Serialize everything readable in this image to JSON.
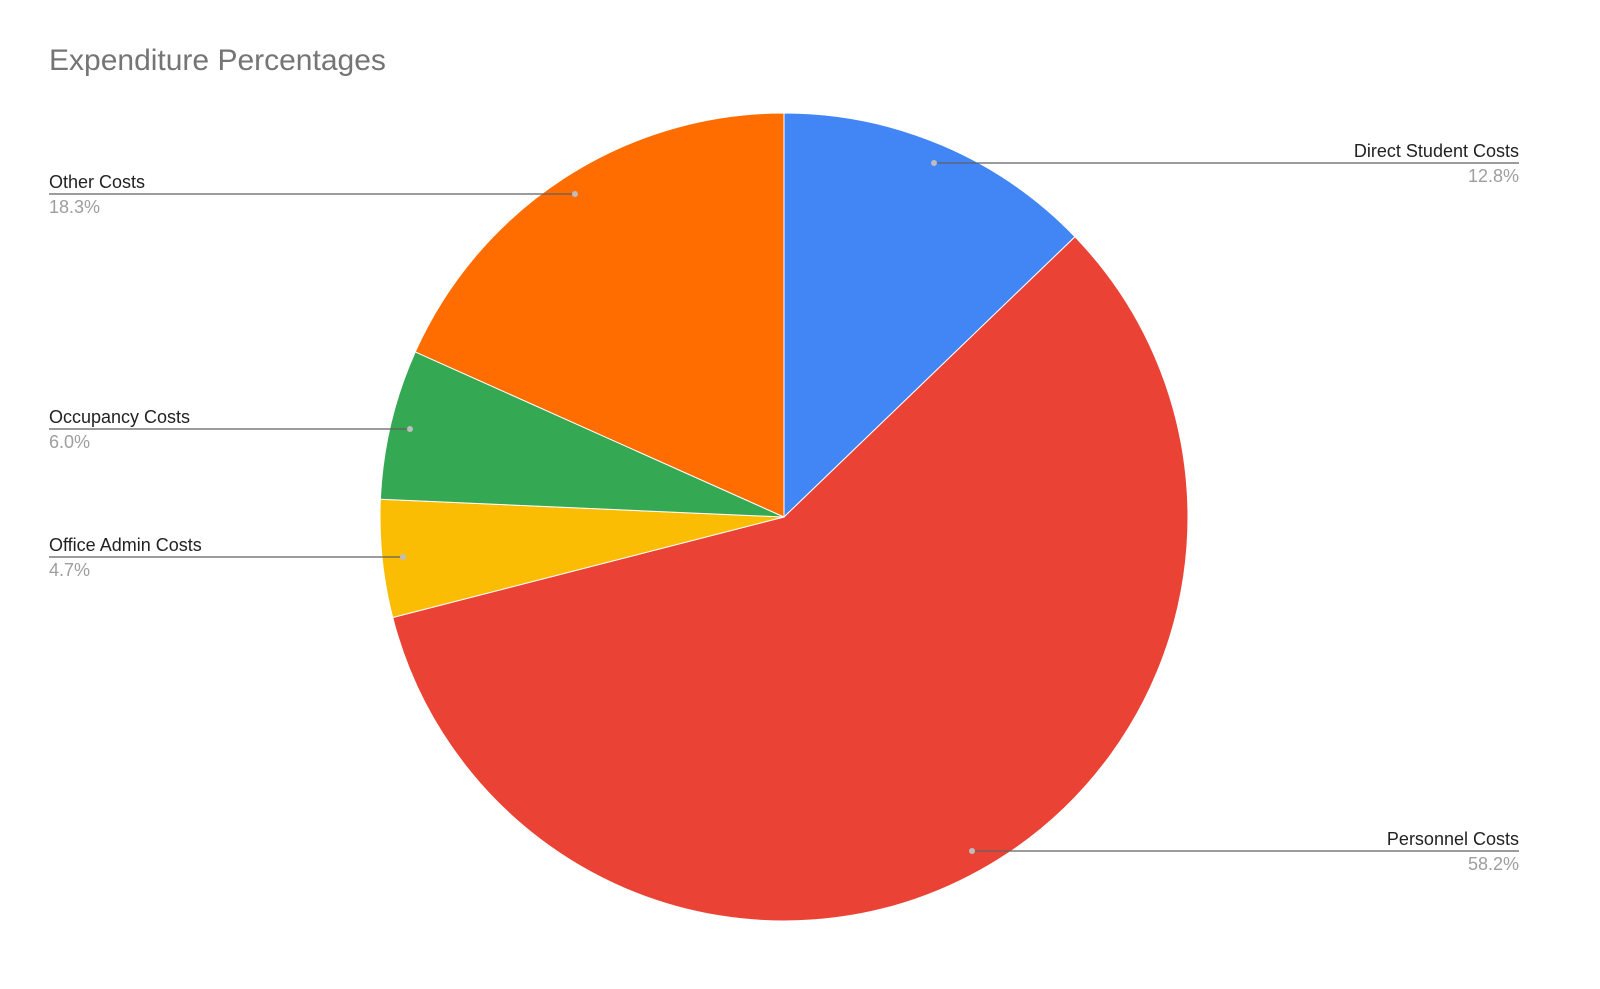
{
  "chart_data": {
    "type": "pie",
    "title": "Expenditure Percentages",
    "slices": [
      {
        "label": "Direct Student Costs",
        "value": 12.8,
        "value_label": "12.8%",
        "color": "#4285f4",
        "side": "right"
      },
      {
        "label": "Personnel Costs",
        "value": 58.2,
        "value_label": "58.2%",
        "color": "#ea4335",
        "side": "right"
      },
      {
        "label": "Office Admin Costs",
        "value": 4.7,
        "value_label": "4.7%",
        "color": "#fbbc04",
        "side": "left"
      },
      {
        "label": "Occupancy Costs",
        "value": 6.0,
        "value_label": "6.0%",
        "color": "#34a853",
        "side": "left"
      },
      {
        "label": "Other Costs",
        "value": 18.3,
        "value_label": "18.3%",
        "color": "#ff6d01",
        "side": "left"
      }
    ],
    "start": "12 o'clock",
    "direction": "clockwise",
    "legend": "none",
    "label_style": "leader lines"
  }
}
